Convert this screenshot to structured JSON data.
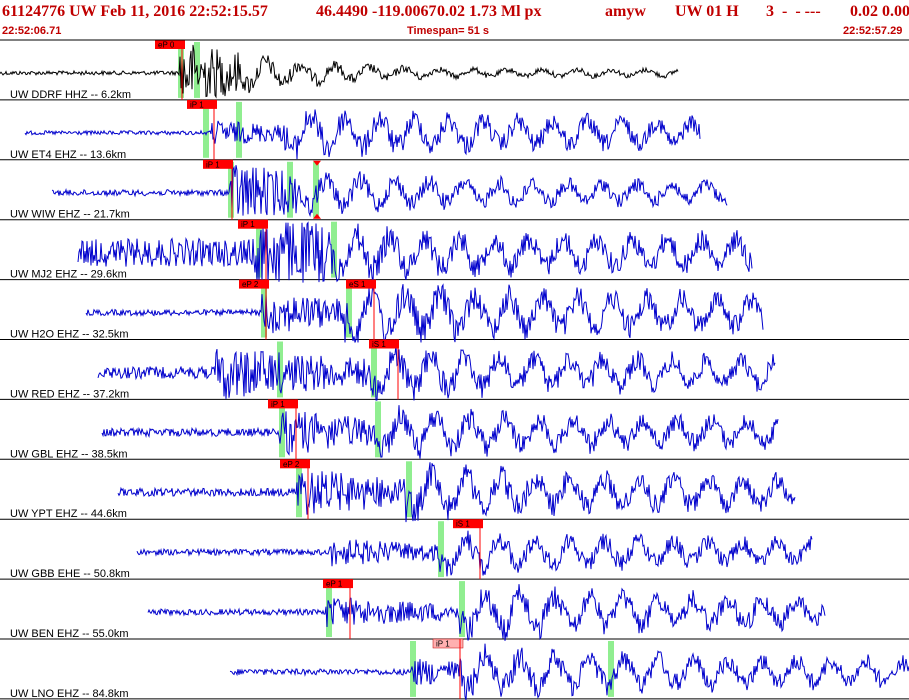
{
  "header": {
    "event_id": "61124776 UW Feb 11, 2016 22:52:15.57",
    "location": "46.4490 -119.0067",
    "magnitude": "0.02 1.73 Ml px",
    "analyst": "amyw",
    "network_flag": "UW 01 H",
    "count_field": "3  -  - ---",
    "tail_values": "0.02 0.00"
  },
  "timebar": {
    "start_time": "22:52:06.71",
    "timespan": "Timespan=  51 s",
    "end_time": "22:52:57.29"
  },
  "colors": {
    "header_text": "#c00000",
    "trace_reference": "#000000",
    "trace": "#0000cc",
    "pick_box": "#ff0000",
    "pick_box_light": "#ffb0b0",
    "green_marker": "#90ee90"
  },
  "channels": [
    {
      "label": "UW DDRF HHZ -- 6.2km",
      "color_key": "trace_reference",
      "picks": [
        {
          "text": "eP 0",
          "light": false
        }
      ]
    },
    {
      "label": "UW ET4 EHZ -- 13.6km",
      "color_key": "trace",
      "picks": [
        {
          "text": "iP 1",
          "light": false
        }
      ]
    },
    {
      "label": "UW WIW EHZ -- 21.7km",
      "color_key": "trace",
      "picks": [
        {
          "text": "iP 1",
          "light": false
        }
      ]
    },
    {
      "label": "UW MJ2 EHZ -- 29.6km",
      "color_key": "trace",
      "picks": [
        {
          "text": "iP 1",
          "light": false
        }
      ]
    },
    {
      "label": "UW H2O EHZ -- 32.5km",
      "color_key": "trace",
      "picks": [
        {
          "text": "eP 2",
          "light": false
        },
        {
          "text": "eS 1",
          "light": false
        }
      ]
    },
    {
      "label": "UW RED EHZ -- 37.2km",
      "color_key": "trace",
      "picks": [
        {
          "text": "iS 1",
          "light": false
        }
      ]
    },
    {
      "label": "UW GBL EHZ -- 38.5km",
      "color_key": "trace",
      "picks": [
        {
          "text": "iP 1",
          "light": false
        }
      ]
    },
    {
      "label": "UW YPT EHZ -- 44.6km",
      "color_key": "trace",
      "picks": [
        {
          "text": "eP 2",
          "light": false
        }
      ]
    },
    {
      "label": "UW GBB EHE -- 50.8km",
      "color_key": "trace",
      "picks": [
        {
          "text": "iS 1",
          "light": false
        }
      ]
    },
    {
      "label": "UW BEN EHZ -- 55.0km",
      "color_key": "trace",
      "picks": [
        {
          "text": "eP 1",
          "light": false
        }
      ]
    },
    {
      "label": "UW LNO EHZ -- 84.8km",
      "color_key": "trace",
      "picks": [
        {
          "text": "iP 1",
          "light": true
        }
      ]
    }
  ]
}
